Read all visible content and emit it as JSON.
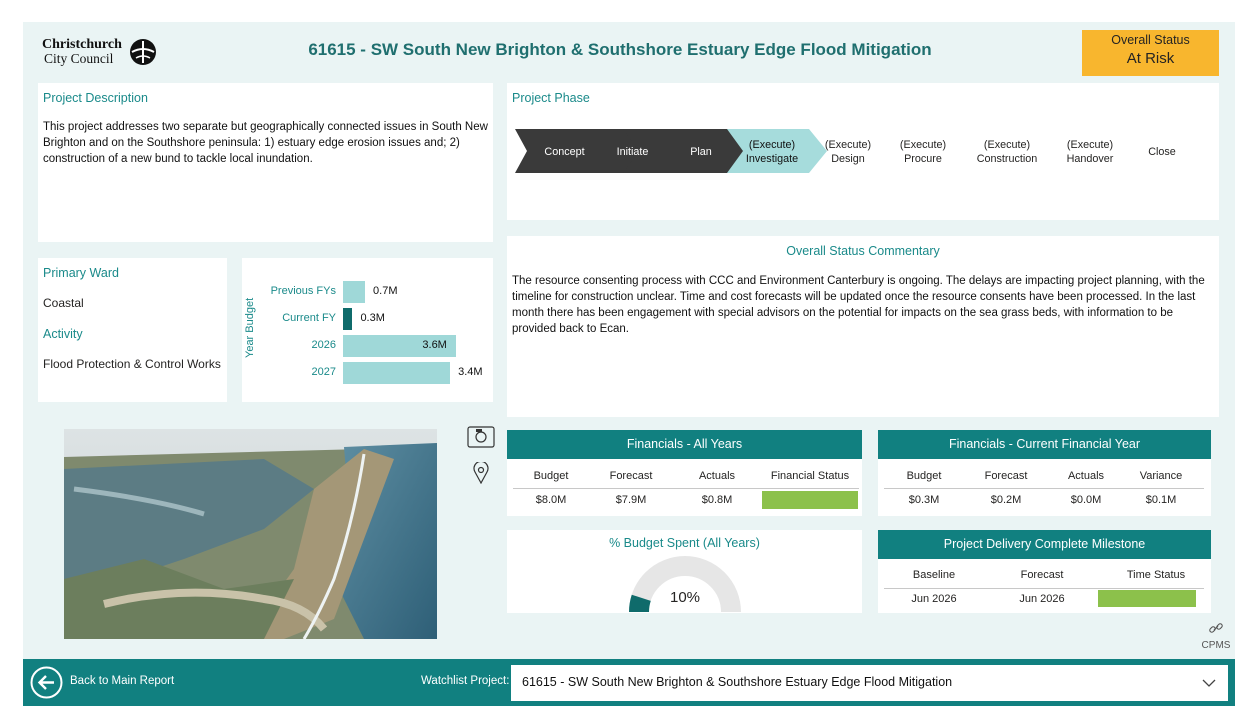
{
  "header": {
    "logo_line1": "Christchurch",
    "logo_line2": "City Council",
    "title": "61615 - SW South New Brighton & Southshore Estuary Edge Flood Mitigation",
    "status_label": "Overall Status",
    "status_value": "At Risk",
    "status_color": "#f8b62e"
  },
  "description": {
    "title": "Project Description",
    "text": "This project addresses two separate but geographically connected issues in South New Brighton and on the Southshore peninsula: 1) estuary edge erosion issues and; 2) construction of a new bund to tackle local inundation."
  },
  "phase": {
    "title": "Project Phase",
    "steps": [
      {
        "line1": "Concept",
        "line2": ""
      },
      {
        "line1": "Initiate",
        "line2": ""
      },
      {
        "line1": "Plan",
        "line2": ""
      },
      {
        "line1": "(Execute)",
        "line2": "Investigate"
      },
      {
        "line1": "(Execute)",
        "line2": "Design"
      },
      {
        "line1": "(Execute)",
        "line2": "Procure"
      },
      {
        "line1": "(Execute)",
        "line2": "Construction"
      },
      {
        "line1": "(Execute)",
        "line2": "Handover"
      },
      {
        "line1": "Close",
        "line2": ""
      }
    ],
    "current": "(Execute) Investigate"
  },
  "ward": {
    "ward_label": "Primary Ward",
    "ward_value": "Coastal",
    "activity_label": "Activity",
    "activity_value": "Flood Protection & Control Works"
  },
  "year_budget": {
    "axis_label": "Year Budget",
    "chart_data": {
      "type": "bar",
      "categories": [
        "Previous FYs",
        "Current FY",
        "2026",
        "2027"
      ],
      "values": [
        0.7,
        0.3,
        3.6,
        3.4
      ],
      "labels": [
        "0.7M",
        "0.3M",
        "3.6M",
        "3.4M"
      ],
      "unit": "M",
      "colors": [
        "#9fd8d8",
        "#0f6b6b",
        "#9fd8d8",
        "#9fd8d8"
      ]
    }
  },
  "commentary": {
    "title": "Overall Status Commentary",
    "text": "The resource consenting process with CCC and Environment Canterbury is ongoing. The delays are impacting project planning, with the timeline for construction unclear. Time and cost forecasts will be updated once the resource consents have been processed. In the last month there has been engagement with special advisors on the potential for impacts on the sea grass beds, with information to be provided back to Ecan."
  },
  "fin_all": {
    "title": "Financials - All Years",
    "headers": [
      "Budget",
      "Forecast",
      "Actuals",
      "Financial Status"
    ],
    "values": [
      "$8.0M",
      "$7.9M",
      "$0.8M"
    ],
    "status_color": "#8cc14b"
  },
  "fin_current": {
    "title": "Financials - Current Financial Year",
    "headers": [
      "Budget",
      "Forecast",
      "Actuals",
      "Variance"
    ],
    "values": [
      "$0.3M",
      "$0.2M",
      "$0.0M",
      "$0.1M"
    ]
  },
  "budget_spent": {
    "title": "% Budget Spent (All Years)",
    "percent": 10,
    "label": "10%"
  },
  "milestone": {
    "title": "Project Delivery Complete Milestone",
    "headers": [
      "Baseline",
      "Forecast",
      "Time Status"
    ],
    "values": [
      "Jun 2026",
      "Jun 2026"
    ],
    "status_color": "#8cc14b"
  },
  "links": {
    "cpms_label": "CPMS"
  },
  "footer": {
    "back_label": "Back to Main Report",
    "watchlist_label": "Watchlist Project:",
    "watchlist_value": "61615 - SW South New Brighton & Southshore Estuary Edge Flood Mitigation"
  }
}
